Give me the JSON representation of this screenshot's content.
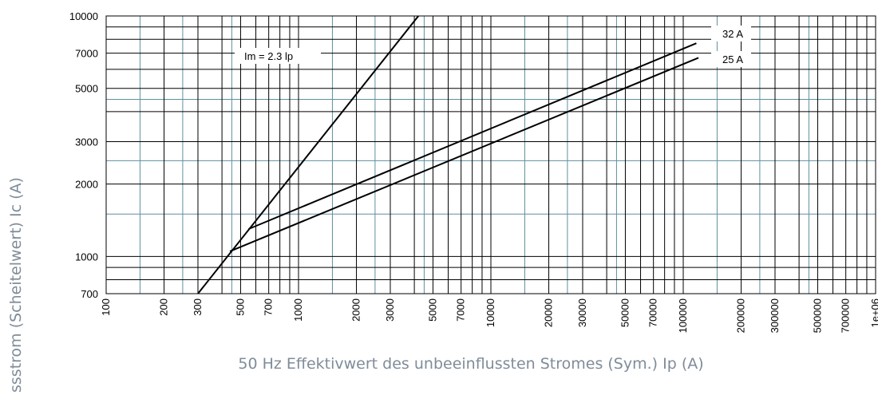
{
  "chart_data": {
    "type": "line",
    "xlabel": "50 Hz Effektivwert des unbeeinflussten Stromes (Sym.) Ip (A)",
    "ylabel": "ssstrom (Scheitelwert) Ic (A)",
    "xscale": "log",
    "yscale": "log",
    "grid": true,
    "xlim": [
      100,
      1000000
    ],
    "ylim": [
      700,
      10000
    ],
    "xticks": [
      100,
      200,
      300,
      500,
      700,
      1000,
      2000,
      3000,
      5000,
      7000,
      10000,
      20000,
      30000,
      50000,
      70000,
      100000,
      200000,
      300000,
      500000,
      700000,
      {
        "value": 1000000,
        "label": "1e+06"
      }
    ],
    "yticks": [
      700,
      1000,
      2000,
      3000,
      5000,
      7000,
      10000
    ],
    "x_minor_grid": [
      400,
      600,
      800,
      900,
      4000,
      6000,
      8000,
      9000,
      40000,
      60000,
      80000,
      90000,
      400000,
      600000,
      800000,
      900000
    ],
    "y_minor_grid": [
      800,
      900,
      4000,
      6000,
      8000,
      9000
    ],
    "x_secondary_grid": [
      150,
      250,
      450,
      1500,
      2500,
      4500,
      15000,
      25000,
      45000,
      150000,
      250000,
      450000
    ],
    "y_secondary_grid": [
      1500,
      2500,
      4500
    ],
    "grid_color": "#000000",
    "secondary_grid_color": "#5f8f9f",
    "series": [
      {
        "name": "Im = 2.3 lp",
        "color": "#000000",
        "x": [
          300,
          4200
        ],
        "values": [
          700,
          10000
        ]
      },
      {
        "name": "32 A",
        "color": "#000000",
        "x": [
          550,
          117000
        ],
        "values": [
          1300,
          7700
        ]
      },
      {
        "name": "25 A",
        "color": "#000000",
        "x": [
          440,
          120000
        ],
        "values": [
          1050,
          6700
        ]
      }
    ]
  }
}
